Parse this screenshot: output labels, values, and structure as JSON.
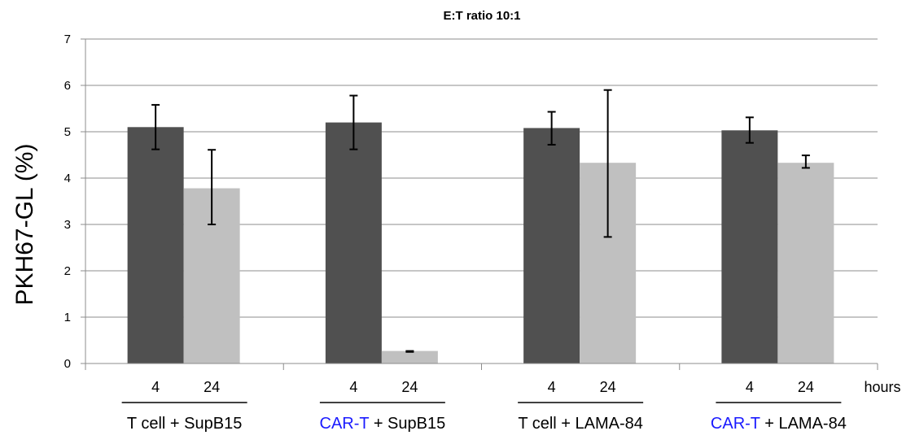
{
  "chart_data": {
    "type": "bar",
    "title": "E:T ratio  10:1",
    "ylabel": "PKH67-GL (%)",
    "xlabel": "",
    "x_unit_label": "hours",
    "ylim": [
      0,
      7
    ],
    "yticks": [
      0,
      1,
      2,
      3,
      4,
      5,
      6,
      7
    ],
    "grid": true,
    "groups": [
      {
        "label_highlight": "",
        "label_rest": "T cell + SupB15"
      },
      {
        "label_highlight": "CAR-T",
        "label_rest": " + SupB15"
      },
      {
        "label_highlight": "",
        "label_rest": "T cell + LAMA-84"
      },
      {
        "label_highlight": "CAR-T",
        "label_rest": " + LAMA-84"
      }
    ],
    "sub_categories": [
      "4",
      "24"
    ],
    "series": [
      {
        "name": "4",
        "color": "#505050",
        "values": [
          5.1,
          5.2,
          5.08,
          5.03
        ],
        "error_low": [
          4.62,
          4.62,
          4.72,
          4.76
        ],
        "error_high": [
          5.58,
          5.78,
          5.43,
          5.31
        ]
      },
      {
        "name": "24",
        "color": "#c0c0c0",
        "values": [
          3.78,
          0.27,
          4.33,
          4.33
        ],
        "error_low": [
          3.0,
          0.25,
          2.73,
          4.22
        ],
        "error_high": [
          4.61,
          0.27,
          5.9,
          4.49
        ]
      }
    ],
    "highlight_color": "#1a1aff"
  }
}
